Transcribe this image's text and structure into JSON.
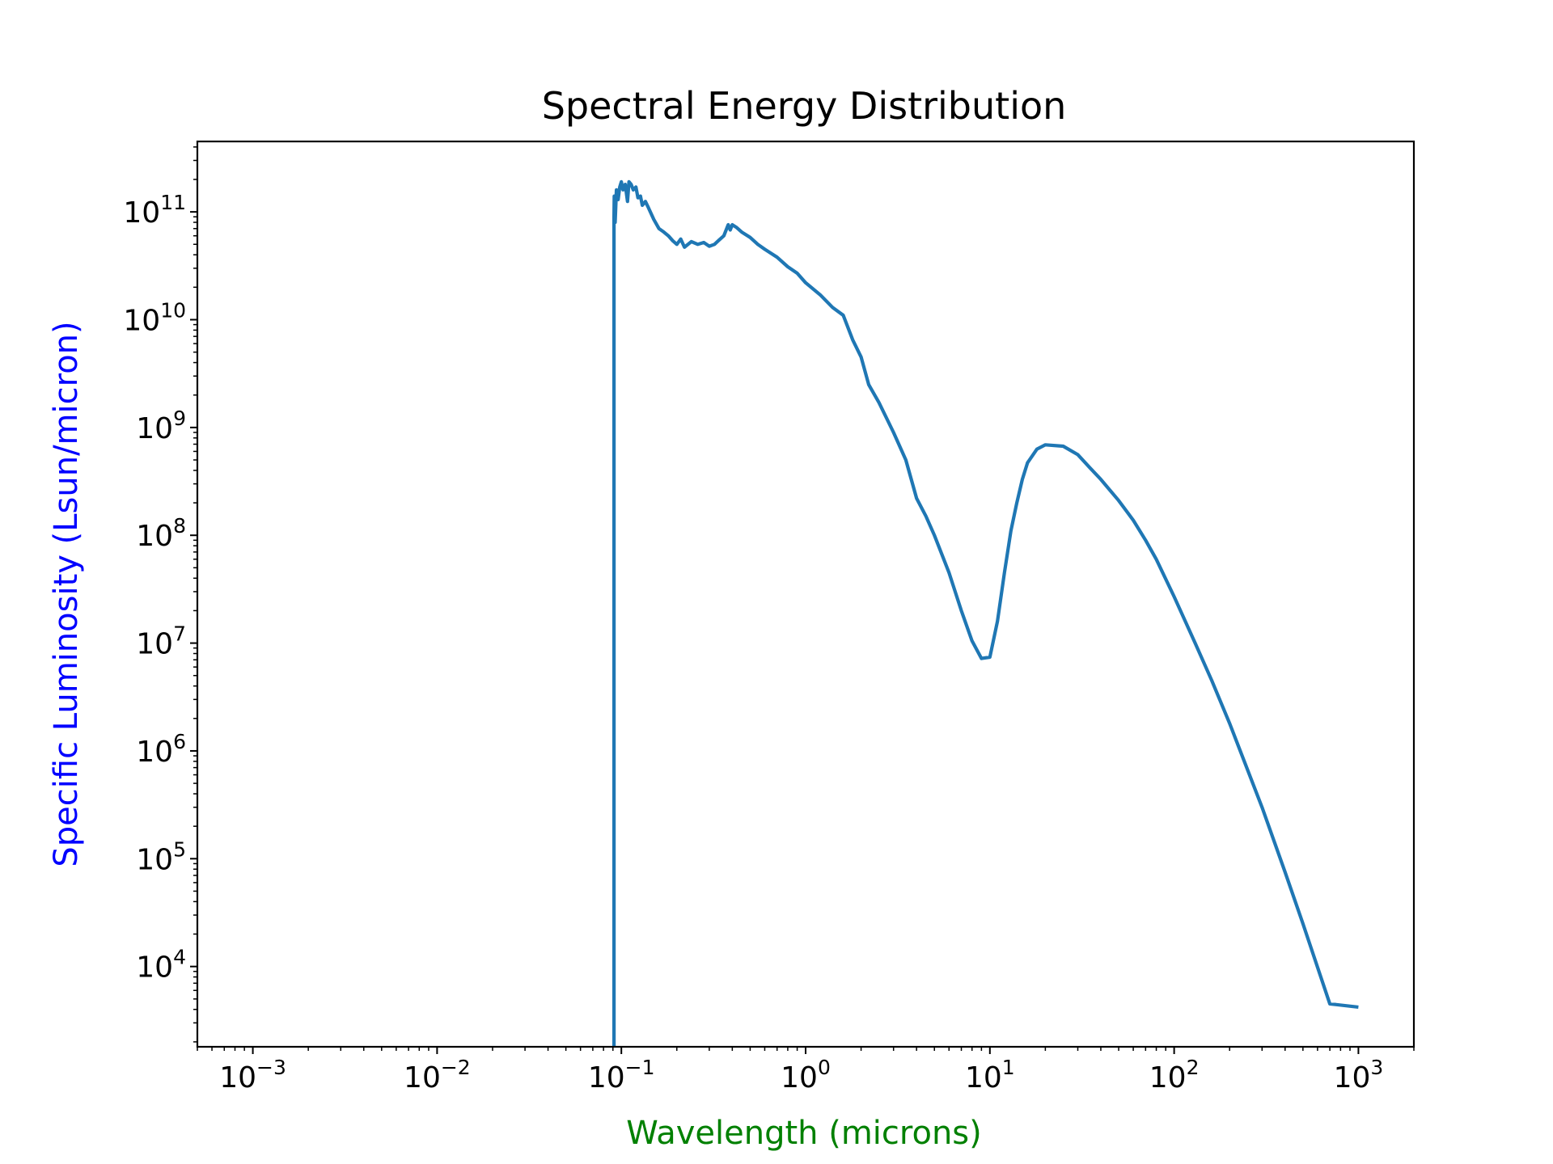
{
  "chart_data": {
    "type": "line",
    "title": "Spectral Energy Distribution",
    "xlabel": "Wavelength (microns)",
    "ylabel": "Specific Luminosity (Lsun/micron)",
    "xscale": "log",
    "yscale": "log",
    "xlim": [
      0.0005,
      2000
    ],
    "ylim": [
      1800,
      450000000000.0
    ],
    "grid": false,
    "xticks": [
      {
        "base": "10",
        "exp": "−3",
        "value": 0.001
      },
      {
        "base": "10",
        "exp": "−2",
        "value": 0.01
      },
      {
        "base": "10",
        "exp": "−1",
        "value": 0.1
      },
      {
        "base": "10",
        "exp": "0",
        "value": 1
      },
      {
        "base": "10",
        "exp": "1",
        "value": 10
      },
      {
        "base": "10",
        "exp": "2",
        "value": 100
      },
      {
        "base": "10",
        "exp": "3",
        "value": 1000
      }
    ],
    "yticks": [
      {
        "base": "10",
        "exp": "4",
        "value": 10000
      },
      {
        "base": "10",
        "exp": "5",
        "value": 100000
      },
      {
        "base": "10",
        "exp": "6",
        "value": 1000000
      },
      {
        "base": "10",
        "exp": "7",
        "value": 10000000
      },
      {
        "base": "10",
        "exp": "8",
        "value": 100000000
      },
      {
        "base": "10",
        "exp": "9",
        "value": 1000000000
      },
      {
        "base": "10",
        "exp": "10",
        "value": 10000000000
      },
      {
        "base": "10",
        "exp": "11",
        "value": 100000000000
      }
    ],
    "series": [
      {
        "color": "#1f77b4",
        "x": [
          0.0912,
          0.0912,
          0.0915,
          0.0925,
          0.094,
          0.096,
          0.098,
          0.1,
          0.102,
          0.105,
          0.108,
          0.11,
          0.113,
          0.116,
          0.12,
          0.123,
          0.127,
          0.13,
          0.135,
          0.14,
          0.15,
          0.16,
          0.17,
          0.18,
          0.19,
          0.2,
          0.21,
          0.22,
          0.24,
          0.26,
          0.28,
          0.3,
          0.32,
          0.34,
          0.36,
          0.38,
          0.39,
          0.4,
          0.42,
          0.45,
          0.5,
          0.55,
          0.6,
          0.7,
          0.8,
          0.9,
          1.0,
          1.2,
          1.4,
          1.6,
          1.8,
          2.0,
          2.2,
          2.5,
          3.0,
          3.5,
          4.0,
          4.5,
          5.0,
          6.0,
          7.0,
          8.0,
          9.0,
          10.0,
          11.0,
          12.0,
          13.0,
          14.0,
          15.0,
          16.0,
          18.0,
          20.0,
          25.0,
          30.0,
          35.0,
          40.0,
          45.0,
          50.0,
          60.0,
          70.0,
          80.0,
          100.0,
          130.0,
          160.0,
          200.0,
          300.0,
          400.0,
          500.0,
          700.0,
          1000.0
        ],
        "y": [
          1800,
          90000000000.0,
          140000000000.0,
          80000000000.0,
          160000000000.0,
          130000000000.0,
          170000000000.0,
          190000000000.0,
          160000000000.0,
          180000000000.0,
          125000000000.0,
          190000000000.0,
          180000000000.0,
          160000000000.0,
          170000000000.0,
          135000000000.0,
          140000000000.0,
          115000000000.0,
          125000000000.0,
          110000000000.0,
          85000000000.0,
          70000000000.0,
          65000000000.0,
          60000000000.0,
          54000000000.0,
          50000000000.0,
          56000000000.0,
          47000000000.0,
          53000000000.0,
          50000000000.0,
          52000000000.0,
          48000000000.0,
          50000000000.0,
          55000000000.0,
          60000000000.0,
          76000000000.0,
          68000000000.0,
          76000000000.0,
          72000000000.0,
          65000000000.0,
          58000000000.0,
          50000000000.0,
          45000000000.0,
          38000000000.0,
          31000000000.0,
          27000000000.0,
          22000000000.0,
          17000000000.0,
          13000000000.0,
          11000000000.0,
          6500000000.0,
          4500000000.0,
          2500000000.0,
          1700000000.0,
          900000000.0,
          500000000.0,
          220000000.0,
          150000000.0,
          100000000.0,
          45000000.0,
          20000000.0,
          10500000.0,
          7200000.0,
          7400000.0,
          16000000.0,
          45000000.0,
          110000000.0,
          200000000.0,
          330000000.0,
          470000000.0,
          630000000.0,
          690000000.0,
          670000000.0,
          560000000.0,
          420000000.0,
          330000000.0,
          260000000.0,
          210000000.0,
          138000000.0,
          90000000.0,
          60000000.0,
          27000000.0,
          10000000.0,
          4500000.0,
          1800000.0,
          300000.0,
          75000.0,
          25000.0,
          4500.0,
          4200.0
        ]
      }
    ]
  }
}
